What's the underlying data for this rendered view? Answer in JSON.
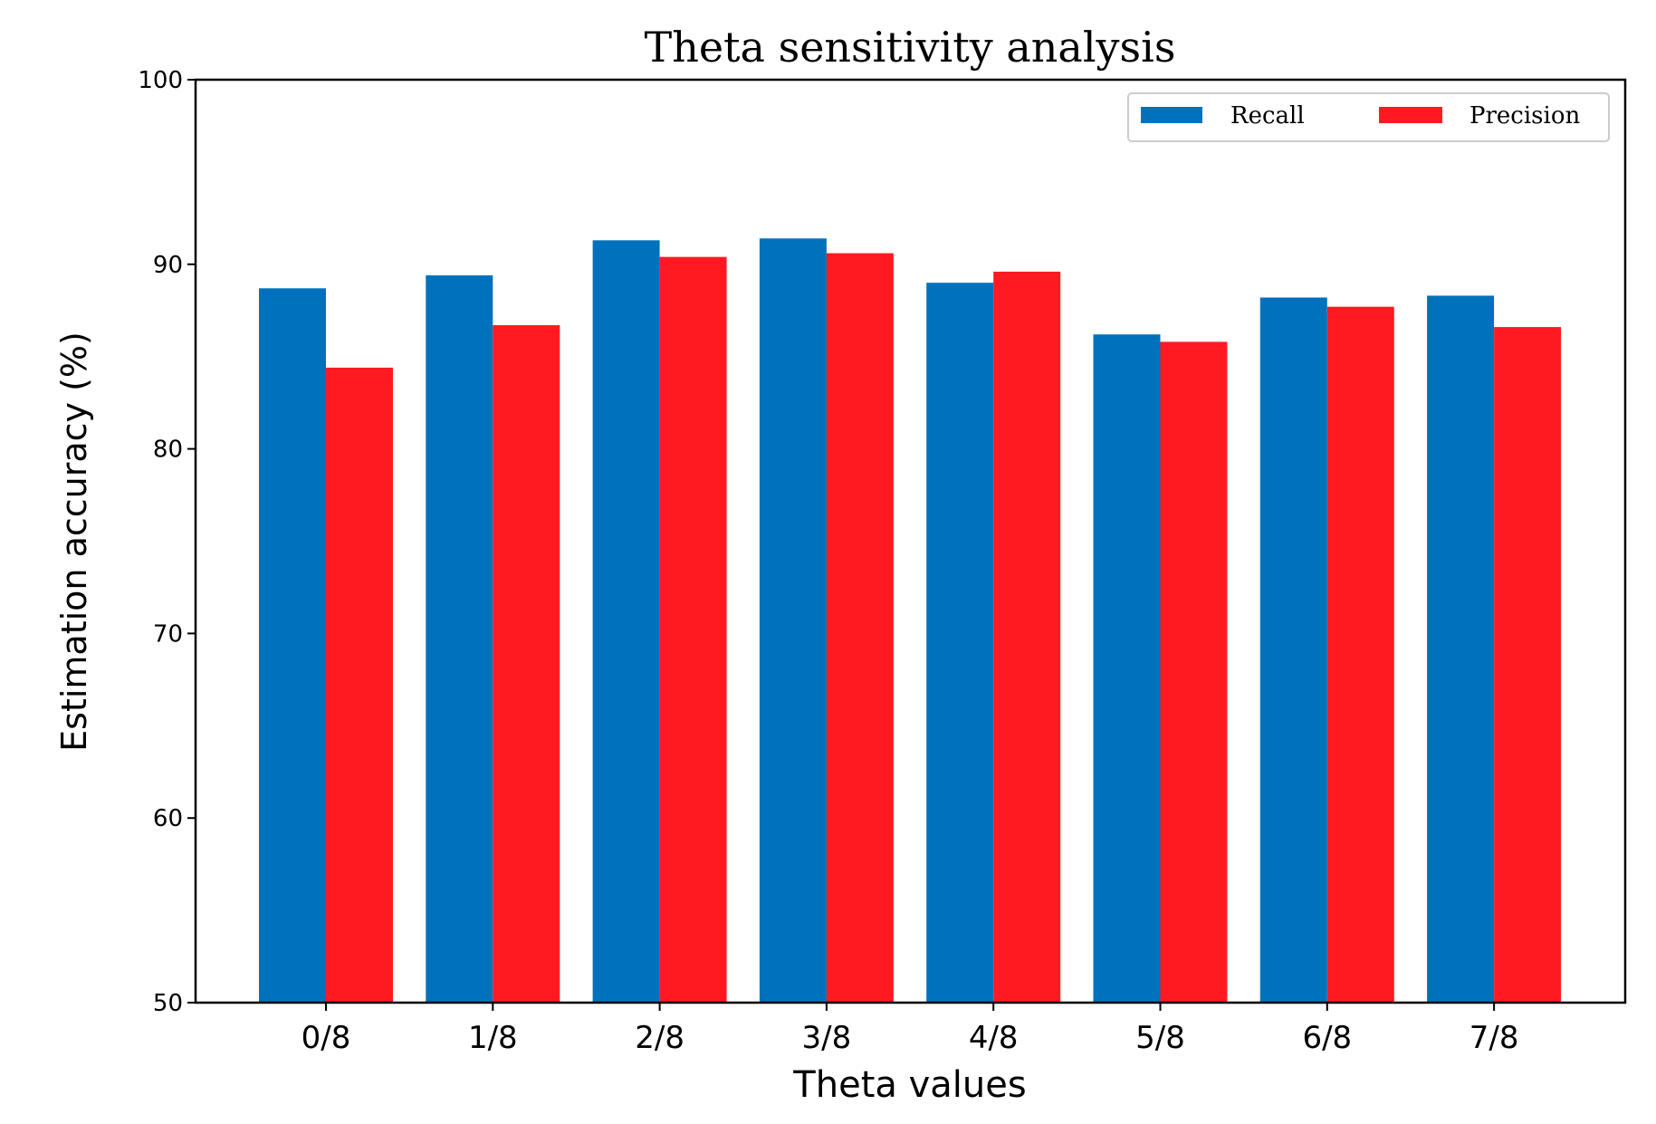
{
  "chart_data": {
    "type": "bar",
    "title": "Theta sensitivity analysis",
    "xlabel": "Theta values",
    "ylabel": "Estimation accuracy (%)",
    "ylim": [
      50,
      100
    ],
    "yticks": [
      "50",
      "60",
      "70",
      "80",
      "90",
      "100"
    ],
    "categories": [
      "0/8",
      "1/8",
      "2/8",
      "3/8",
      "4/8",
      "5/8",
      "6/8",
      "7/8"
    ],
    "series": [
      {
        "name": "Recall",
        "color": "#0072BD",
        "values": [
          88.7,
          89.4,
          91.3,
          91.4,
          89.0,
          86.2,
          88.2,
          88.3
        ]
      },
      {
        "name": "Precision",
        "color": "#FF1A22",
        "values": [
          84.4,
          86.7,
          90.4,
          90.6,
          89.6,
          85.8,
          87.7,
          86.6
        ]
      }
    ],
    "legend": "top-right",
    "grid": false
  }
}
